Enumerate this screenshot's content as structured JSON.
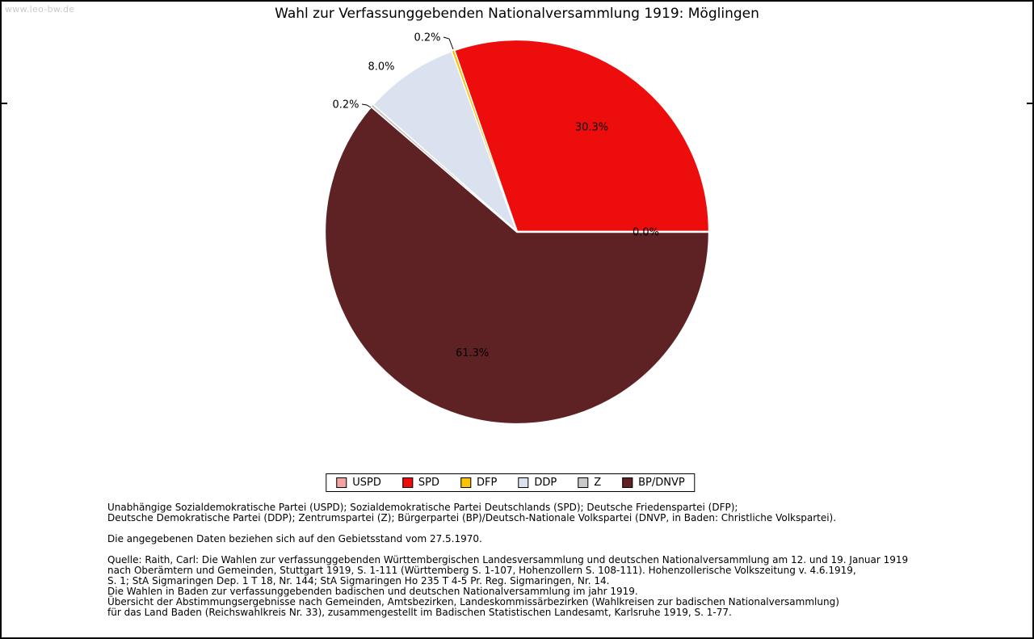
{
  "watermark": "www.leo-bw.de",
  "title": "Wahl zur Verfassunggebenden Nationalversammlung 1919: Möglingen",
  "chart_data": {
    "type": "pie",
    "title": "Wahl zur Verfassunggebenden Nationalversammlung 1919: Möglingen",
    "unit": "percent",
    "start_angle_deg": 0,
    "direction": "counterclockwise",
    "legend_position": "bottom",
    "slices": [
      {
        "label": "USPD",
        "value_pct": 0.0,
        "pct_label": "0.0%",
        "color": "#f2a3a3"
      },
      {
        "label": "SPD",
        "value_pct": 30.3,
        "pct_label": "30.3%",
        "color": "#ee0d0d"
      },
      {
        "label": "DFP",
        "value_pct": 0.2,
        "pct_label": "0.2%",
        "color": "#fcc200"
      },
      {
        "label": "DDP",
        "value_pct": 8.0,
        "pct_label": "8.0%",
        "color": "#dbe2ef"
      },
      {
        "label": "Z",
        "value_pct": 0.2,
        "pct_label": "0.2%",
        "color": "#c9c9c9"
      },
      {
        "label": "BP/DNVP",
        "value_pct": 61.3,
        "pct_label": "61.3%",
        "color": "#5e2124"
      }
    ]
  },
  "footer": {
    "party_note_lines": [
      "Unabhängige Sozialdemokratische Partei (USPD); Sozialdemokratische Partei Deutschlands (SPD); Deutsche Friedenspartei (DFP);",
      "Deutsche Demokratische Partei (DDP); Zentrumspartei (Z); Bürgerpartei (BP)/Deutsch-Nationale Volkspartei (DNVP, in Baden: Christliche Volkspartei)."
    ],
    "data_note": "Die angegebenen Daten beziehen sich auf den Gebietsstand vom 27.5.1970.",
    "source_lines": [
      "Quelle: Raith, Carl: Die Wahlen zur verfassunggebenden Württembergischen Landesversammlung und deutschen Nationalversammlung am 12. und 19. Januar 1919",
      "nach Oberämtern und Gemeinden, Stuttgart 1919, S. 1-111 (Württemberg S. 1-107, Hohenzollern S. 108-111). Hohenzollerische Volkszeitung v. 4.6.1919,",
      "S. 1; StA Sigmaringen Dep. 1 T 18, Nr. 144; StA Sigmaringen Ho 235 T 4-5 Pr. Reg. Sigmaringen, Nr. 14.",
      "Die Wahlen in Baden zur verfassunggebenden badischen und deutschen Nationalversammlung im jahr 1919.",
      "Übersicht der Abstimmungsergebnisse nach Gemeinden, Amtsbezirken, Landeskommissärbezirken (Wahlkreisen zur badischen Nationalversammlung)",
      "für das Land Baden (Reichswahlkreis Nr. 33), zusammengestellt im Badischen Statistischen Landesamt, Karlsruhe 1919, S. 1-77."
    ]
  }
}
